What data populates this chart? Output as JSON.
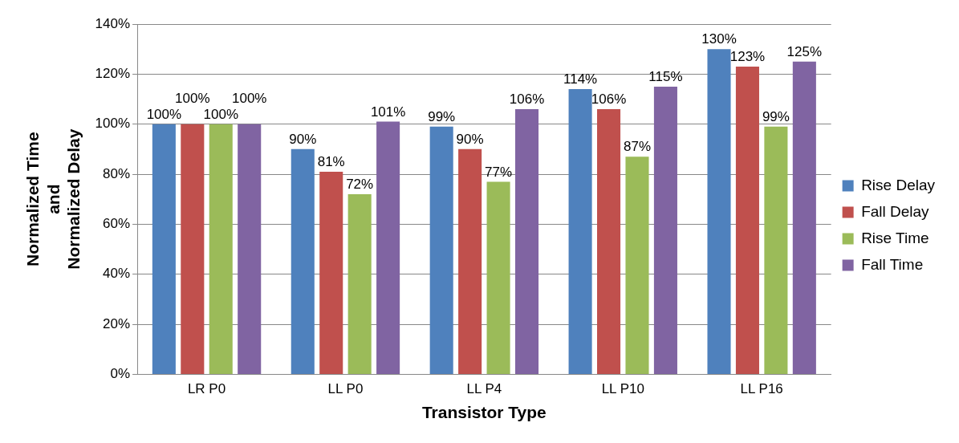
{
  "chart_data": {
    "type": "bar",
    "xlabel": "Transistor Type",
    "ylabel": "Normalized Time\nand\nNormalized Delay",
    "categories": [
      "LR P0",
      "LL P0",
      "LL P4",
      "LL P10",
      "LL P16"
    ],
    "series": [
      {
        "name": "Rise Delay",
        "color": "#4f81bd",
        "values": [
          100,
          90,
          99,
          114,
          130
        ],
        "value_labels": [
          "100%",
          "90%",
          "99%",
          "114%",
          "130%"
        ]
      },
      {
        "name": "Fall Delay",
        "color": "#c0504d",
        "values": [
          100,
          81,
          90,
          106,
          123
        ],
        "value_labels": [
          "100%",
          "81%",
          "90%",
          "106%",
          "123%"
        ]
      },
      {
        "name": "Rise Time",
        "color": "#9bbb59",
        "values": [
          100,
          72,
          77,
          87,
          99
        ],
        "value_labels": [
          "100%",
          "72%",
          "77%",
          "87%",
          "99%"
        ]
      },
      {
        "name": "Fall Time",
        "color": "#8064a2",
        "values": [
          100,
          101,
          106,
          115,
          125
        ],
        "value_labels": [
          "100%",
          "101%",
          "106%",
          "115%",
          "125%"
        ]
      }
    ],
    "ylim": [
      0,
      140
    ],
    "yticks": [
      {
        "value": 0,
        "label": "0%"
      },
      {
        "value": 20,
        "label": "20%"
      },
      {
        "value": 40,
        "label": "40%"
      },
      {
        "value": 60,
        "label": "60%"
      },
      {
        "value": 80,
        "label": "80%"
      },
      {
        "value": 100,
        "label": "100%"
      },
      {
        "value": 120,
        "label": "120%"
      },
      {
        "value": 140,
        "label": "140%"
      }
    ],
    "grid": "y",
    "legend": "right"
  }
}
